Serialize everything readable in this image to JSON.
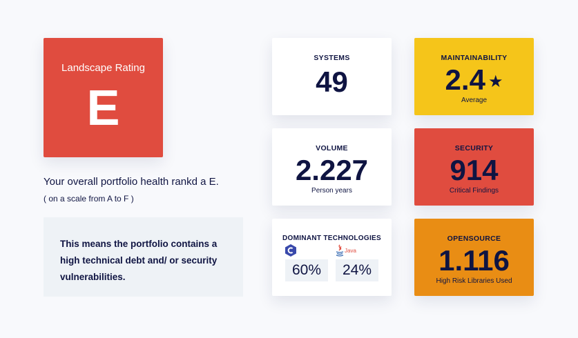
{
  "rating": {
    "title": "Landscape Rating",
    "letter": "E"
  },
  "summary": {
    "health_text": "Your overall portfolio health rankd a E.",
    "scale_text": "( on a scale from A to F )",
    "meaning_text": "This means the portfolio contains a high technical debt and/ or security vulnerabilities."
  },
  "cards": {
    "systems": {
      "label": "SYSTEMS",
      "value": "49"
    },
    "volume": {
      "label": "VOLUME",
      "value": "2.227",
      "sub": "Person years"
    },
    "technologies": {
      "label": "DOMINANT TECHNOLOGIES",
      "items": [
        {
          "icon": "c-language-icon",
          "percent": "60%"
        },
        {
          "icon": "java-icon",
          "icon_text": "Java",
          "percent": "24%"
        }
      ]
    },
    "maintainability": {
      "label": "MAINTAINABILITY",
      "value": "2.4",
      "sub": "Average",
      "color": "#f5c51a"
    },
    "security": {
      "label": "SECURITY",
      "value": "914",
      "sub": "Critical Findings",
      "color": "#e04c3f"
    },
    "opensource": {
      "label": "OPENSOURCE",
      "value": "1.116",
      "sub": "High Risk Libraries Used",
      "color": "#e98d14"
    }
  }
}
